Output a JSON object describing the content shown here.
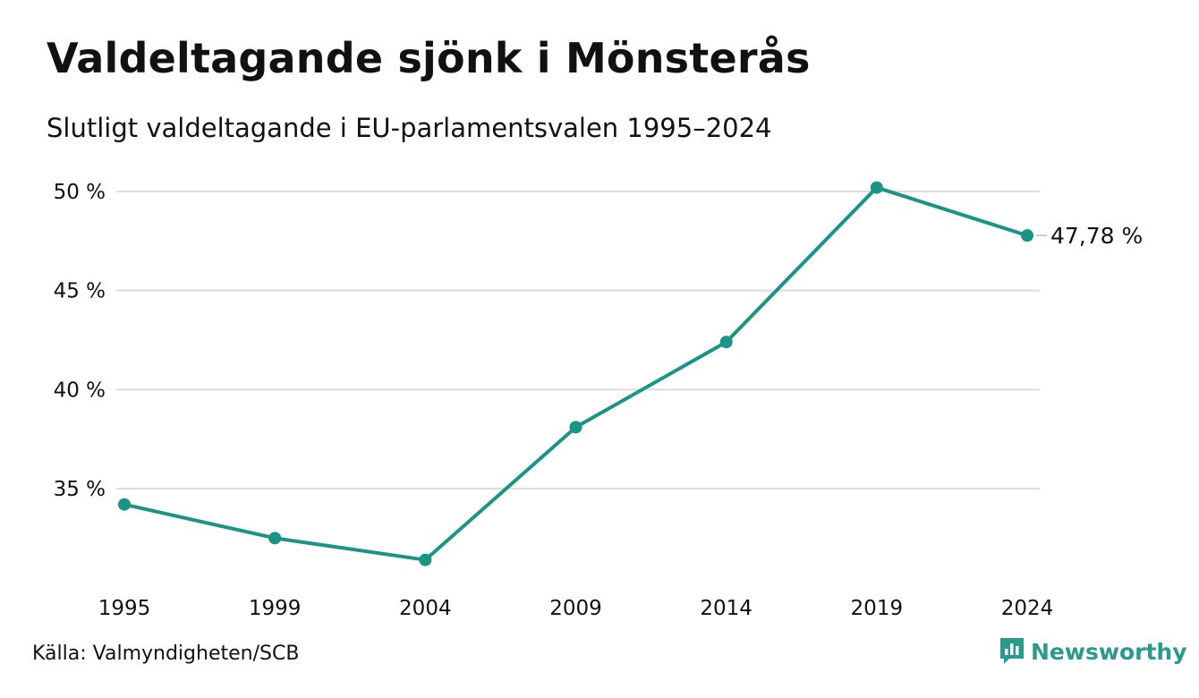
{
  "header": {
    "title": "Valdeltagande sjönk i Mönsterås",
    "subtitle": "Slutligt valdeltagande i EU-parlamentsvalen 1995–2024"
  },
  "footer": {
    "source": "Källa: Valmyndigheten/SCB",
    "brand": "Newsworthy",
    "brand_icon": "bar-chart-speech-bubble-icon"
  },
  "colors": {
    "line": "#1a9485",
    "grid": "#dcdcdc",
    "text": "#111111",
    "brand": "#2a9a8a"
  },
  "chart_data": {
    "type": "line",
    "x": [
      "1995",
      "1999",
      "2004",
      "2009",
      "2014",
      "2019",
      "2024"
    ],
    "series": [
      {
        "values": [
          34.2,
          32.5,
          31.4,
          38.1,
          42.4,
          50.2,
          47.78
        ]
      }
    ],
    "yticks": [
      35,
      40,
      45,
      50
    ],
    "ytick_labels": [
      "35 %",
      "40 %",
      "45 %",
      "50 %"
    ],
    "ylim": [
      30.5,
      50.5
    ],
    "grid": true,
    "end_label": "47,78 %"
  }
}
